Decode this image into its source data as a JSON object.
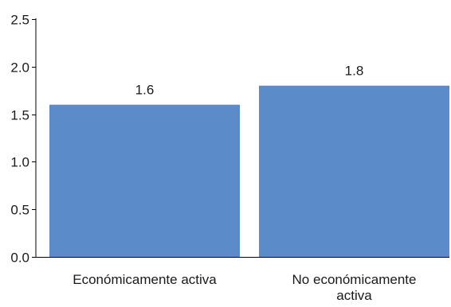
{
  "chart_data": {
    "type": "bar",
    "title": "",
    "xlabel": "",
    "ylabel": "",
    "categories": [
      "Económicamente activa",
      "No económicamente activa"
    ],
    "category_lines": [
      [
        "Económicamente activa"
      ],
      [
        "No económicamente",
        "activa"
      ]
    ],
    "values": [
      1.6,
      1.8
    ],
    "data_labels": [
      "1.6",
      "1.8"
    ],
    "ylim": [
      0,
      2.5
    ],
    "yticks": [
      0.0,
      0.5,
      1.0,
      1.5,
      2.0,
      2.5
    ],
    "ytick_labels": [
      "0.0",
      "0.5",
      "1.0",
      "1.5",
      "2.0",
      "2.5"
    ],
    "grid": false,
    "legend": "none",
    "bar_color": "#5b8bc9"
  }
}
